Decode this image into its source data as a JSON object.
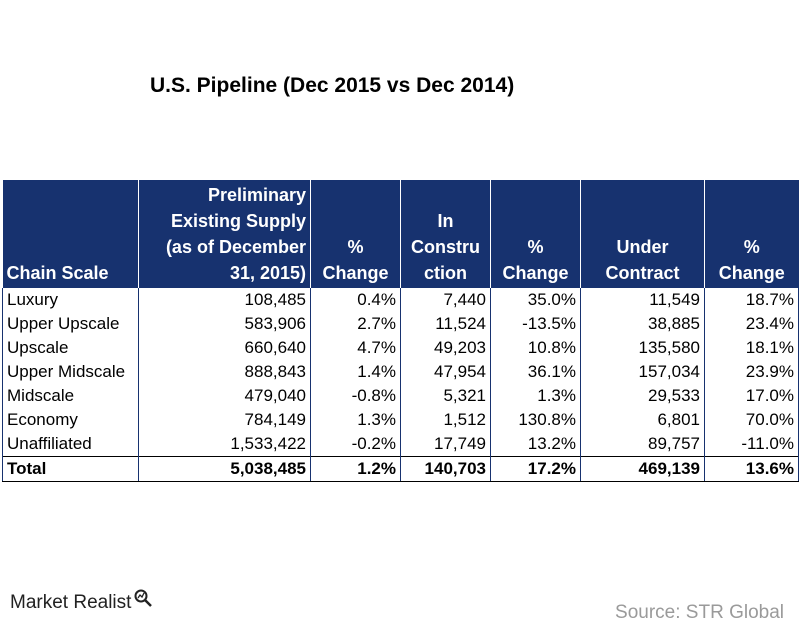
{
  "chart_data": {
    "type": "table",
    "title": "U.S. Pipeline (Dec 2015 vs Dec 2014)",
    "columns": [
      "Chain  Scale",
      "Preliminary Existing Supply (as of December 31, 2015)",
      "% Change",
      "In Constru ction",
      "% Change",
      "Under Contract",
      "% Change"
    ],
    "rows": [
      [
        "Luxury",
        "108,485",
        "0.4%",
        "7,440",
        "35.0%",
        "11,549",
        "18.7%"
      ],
      [
        "Upper Upscale",
        "583,906",
        "2.7%",
        "11,524",
        "-13.5%",
        "38,885",
        "23.4%"
      ],
      [
        "Upscale",
        "660,640",
        "4.7%",
        "49,203",
        "10.8%",
        "135,580",
        "18.1%"
      ],
      [
        "Upper Midscale",
        "888,843",
        "1.4%",
        "47,954",
        "36.1%",
        "157,034",
        "23.9%"
      ],
      [
        "Midscale",
        "479,040",
        "-0.8%",
        "5,321",
        "1.3%",
        "29,533",
        "17.0%"
      ],
      [
        "Economy",
        "784,149",
        "1.3%",
        "1,512",
        "130.8%",
        "6,801",
        "70.0%"
      ],
      [
        "Unaffiliated",
        "1,533,422",
        "-0.2%",
        "17,749",
        "13.2%",
        "89,757",
        "-11.0%"
      ]
    ],
    "total": [
      "Total",
      "5,038,485",
      "1.2%",
      "140,703",
      "17.2%",
      "469,139",
      "13.6%"
    ]
  },
  "header_lines": [
    [
      "Chain  Scale"
    ],
    [
      "Preliminary",
      "Existing Supply",
      "(as of December",
      "31, 2015)"
    ],
    [
      "%",
      "Change"
    ],
    [
      "In",
      "Constru",
      "ction"
    ],
    [
      "%",
      "Change"
    ],
    [
      "Under",
      "Contract"
    ],
    [
      "%",
      "Change"
    ]
  ],
  "footer": {
    "logo_text": "Market Realist",
    "source": "Source: STR Global"
  },
  "colors": {
    "header_bg": "#17326f",
    "header_text": "#ffffff",
    "source_text": "#9a9a9a"
  }
}
